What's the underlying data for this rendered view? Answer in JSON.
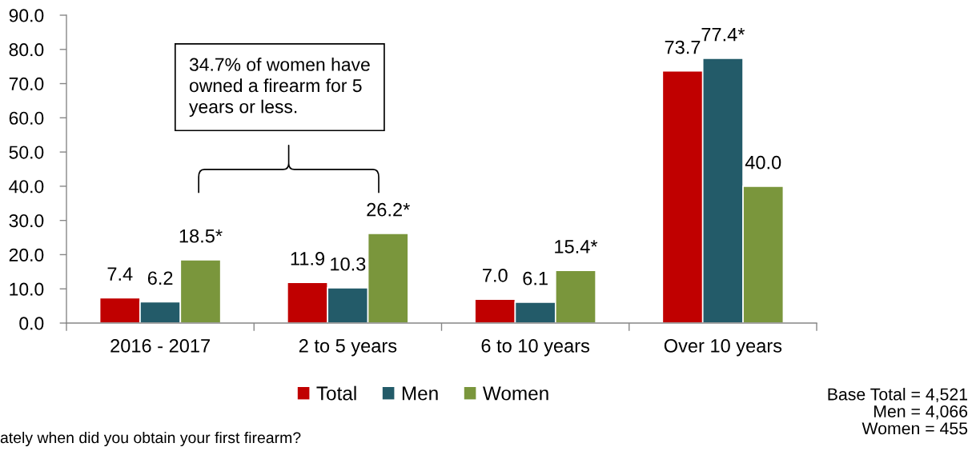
{
  "chart_data": {
    "type": "bar",
    "categories": [
      "2016 - 2017",
      "2 to 5 years",
      "6 to 10 years",
      "Over 10 years"
    ],
    "series": [
      {
        "name": "Total",
        "color": "#c00000",
        "values": [
          7.4,
          11.9,
          7.0,
          73.7
        ],
        "value_labels": [
          "7.4",
          "11.9",
          "7.0",
          "73.7"
        ]
      },
      {
        "name": "Men",
        "color": "#235b69",
        "values": [
          6.2,
          10.3,
          6.1,
          77.4
        ],
        "value_labels": [
          "6.2",
          "10.3",
          "6.1",
          "77.4*"
        ]
      },
      {
        "name": "Women",
        "color": "#7a963c",
        "values": [
          18.5,
          26.2,
          15.4,
          40.0
        ],
        "value_labels": [
          "18.5*",
          "26.2*",
          "15.4*",
          "40.0"
        ]
      }
    ],
    "ylim": [
      0,
      90
    ],
    "yticks": [
      {
        "value": 0,
        "label": "0.0"
      },
      {
        "value": 10,
        "label": "10.0"
      },
      {
        "value": 20,
        "label": "20.0"
      },
      {
        "value": 30,
        "label": "30.0"
      },
      {
        "value": 40,
        "label": "40.0"
      },
      {
        "value": 50,
        "label": "50.0"
      },
      {
        "value": 60,
        "label": "60.0"
      },
      {
        "value": 70,
        "label": "70.0"
      },
      {
        "value": 80,
        "label": "80.0"
      },
      {
        "value": 90,
        "label": "90.0"
      }
    ],
    "legend": "bottom",
    "annotations": [
      "34.7% of women have\nowned a firearm for 5\nyears or less.",
      "ately when did you obtain your first firearm?",
      "Base Total = 4,521\nMen = 4,066\nWomen = 455"
    ]
  }
}
